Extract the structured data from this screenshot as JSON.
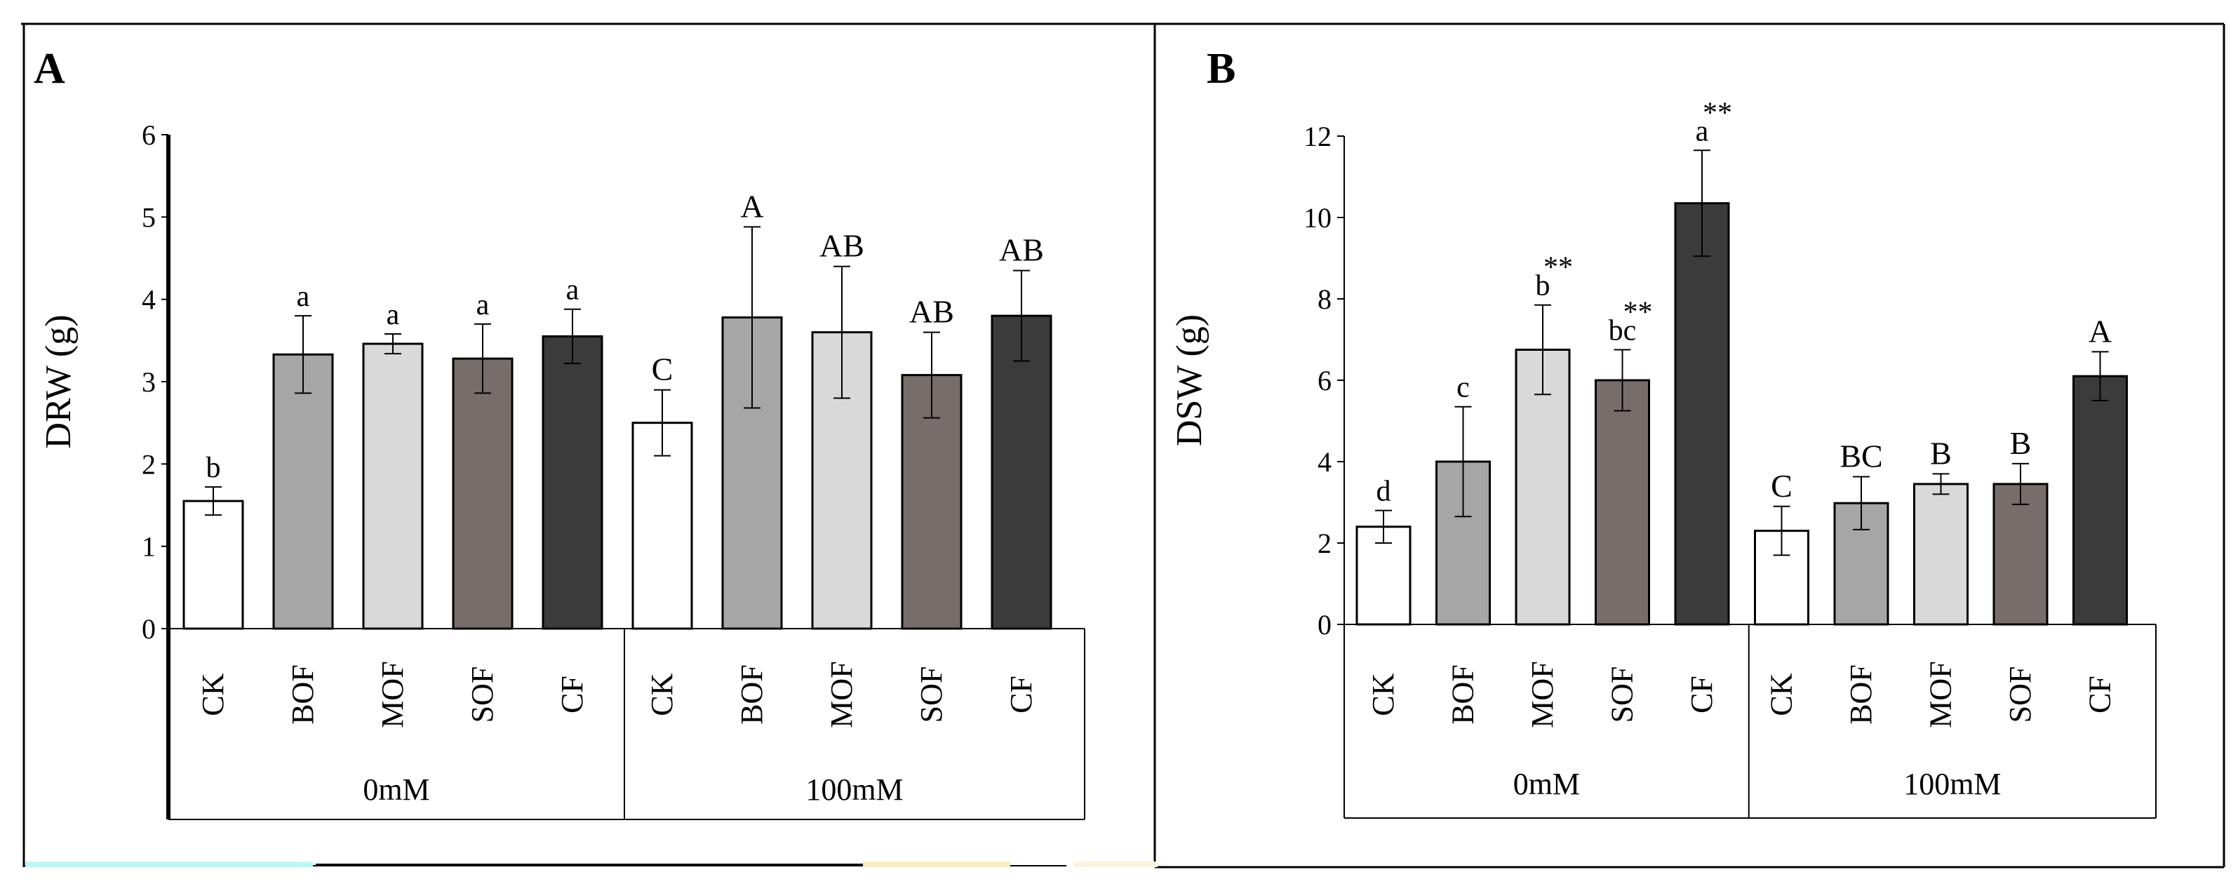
{
  "chart_data": [
    {
      "type": "bar",
      "panel_label": "A",
      "ylabel": "DRW (g)",
      "ylim": [
        0,
        6
      ],
      "yticks": [
        "0",
        "1",
        "2",
        "3",
        "4",
        "5",
        "6"
      ],
      "groups": [
        {
          "label": "0mM",
          "categories": [
            "CK",
            "BOF",
            "MOF",
            "SOF",
            "CF"
          ]
        },
        {
          "label": "100mM",
          "categories": [
            "CK",
            "BOF",
            "MOF",
            "SOF",
            "CF"
          ]
        }
      ],
      "values": [
        1.55,
        3.33,
        3.46,
        3.28,
        3.55,
        2.5,
        3.78,
        3.6,
        3.08,
        3.8
      ],
      "errors": [
        0.17,
        0.47,
        0.12,
        0.42,
        0.33,
        0.4,
        1.1,
        0.8,
        0.52,
        0.55
      ],
      "labels": [
        "b",
        "a",
        "a",
        "a",
        "a",
        "C",
        "A",
        "AB",
        "AB",
        "AB"
      ],
      "stars": [
        "",
        "",
        "",
        "",
        "",
        "",
        "",
        "",
        "",
        ""
      ],
      "fills": [
        "#ffffff",
        "#a6a6a6",
        "#d9d9d9",
        "#776e6c",
        "#3b3b3b",
        "#ffffff",
        "#a6a6a6",
        "#d9d9d9",
        "#776e6c",
        "#3b3b3b"
      ]
    },
    {
      "type": "bar",
      "panel_label": "B",
      "ylabel": "DSW (g)",
      "ylim": [
        0,
        12
      ],
      "yticks": [
        "0",
        "2",
        "4",
        "6",
        "8",
        "10",
        "12"
      ],
      "groups": [
        {
          "label": "0mM",
          "categories": [
            "CK",
            "BOF",
            "MOF",
            "SOF",
            "CF"
          ]
        },
        {
          "label": "100mM",
          "categories": [
            "CK",
            "BOF",
            "MOF",
            "SOF",
            "CF"
          ]
        }
      ],
      "values": [
        2.4,
        4.0,
        6.75,
        6.0,
        10.35,
        2.3,
        2.98,
        3.45,
        3.45,
        6.1
      ],
      "errors": [
        0.4,
        1.35,
        1.1,
        0.75,
        1.3,
        0.6,
        0.65,
        0.25,
        0.5,
        0.6
      ],
      "labels": [
        "d",
        "c",
        "b",
        "bc",
        "a",
        "C",
        "BC",
        "B",
        "B",
        "A"
      ],
      "stars": [
        "",
        "",
        "**",
        "**",
        "**",
        "",
        "",
        "",
        "",
        ""
      ],
      "fills": [
        "#ffffff",
        "#a6a6a6",
        "#d9d9d9",
        "#776e6c",
        "#3b3b3b",
        "#ffffff",
        "#a6a6a6",
        "#d9d9d9",
        "#776e6c",
        "#3b3b3b"
      ]
    }
  ]
}
